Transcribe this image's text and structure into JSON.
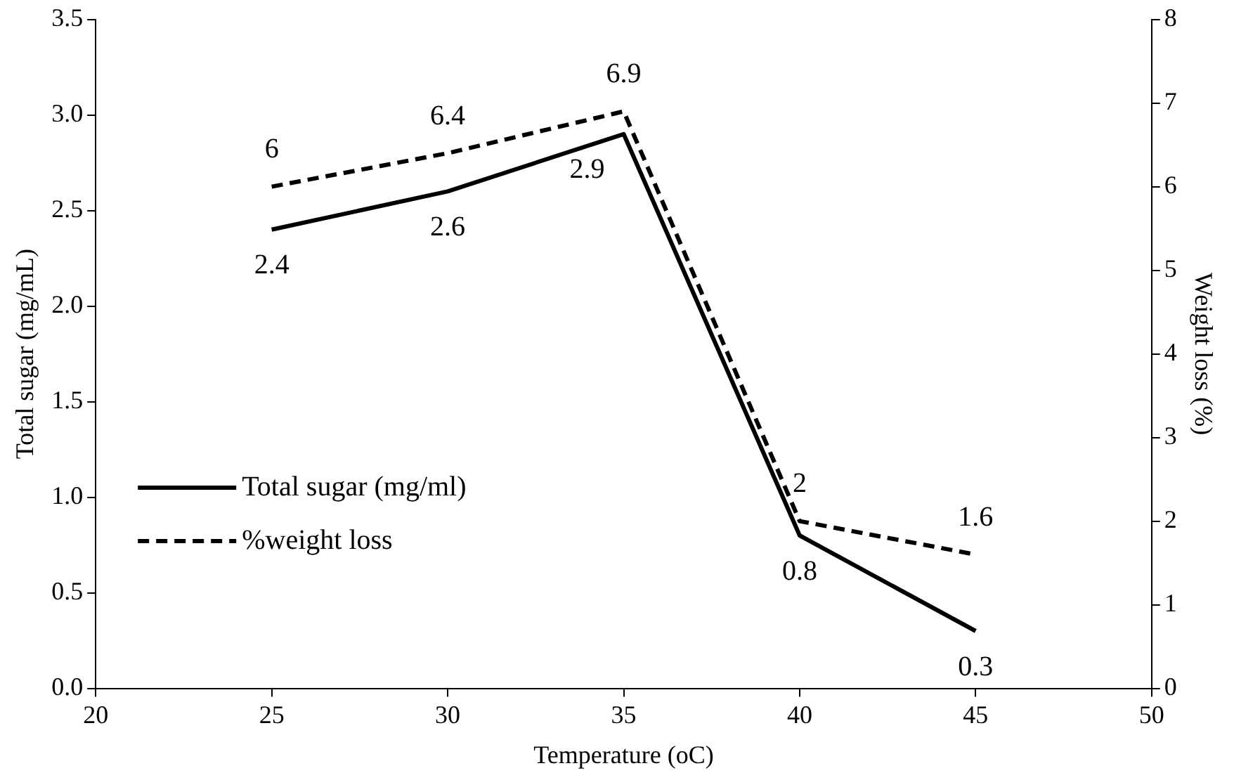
{
  "chart_data": {
    "type": "line",
    "xlabel": "Temperature (oC)",
    "ylabel": "Total sugar (mg/mL)",
    "y2label": "Weight loss (%)",
    "x": [
      25,
      30,
      35,
      40,
      45
    ],
    "series": [
      {
        "name": "Total sugar (mg/ml)",
        "color": "#000000",
        "values": [
          2.4,
          2.6,
          2.9,
          0.8,
          0.3
        ],
        "line_style": "solid"
      },
      {
        "name": "%weight loss",
        "color": "#000000",
        "values": [
          6,
          6.4,
          6.9,
          2,
          1.6
        ],
        "axis": "y2",
        "line_style": "dashed"
      }
    ],
    "xlim": [
      20,
      50
    ],
    "xticks": [
      20,
      25,
      30,
      35,
      40,
      45,
      50
    ],
    "ylim": [
      0,
      3.5
    ],
    "yticks": [
      {
        "value": 0,
        "label": "0.0"
      },
      {
        "value": 0.5,
        "label": "0.5"
      },
      {
        "value": 1,
        "label": "1.0"
      },
      {
        "value": 1.5,
        "label": "1.5"
      },
      {
        "value": 2,
        "label": "2.0"
      },
      {
        "value": 2.5,
        "label": "2.5"
      },
      {
        "value": 3,
        "label": "3.0"
      },
      {
        "value": 3.5,
        "label": "3.5"
      }
    ],
    "y2lim": [
      0,
      8
    ],
    "y2ticks": [
      0,
      1,
      2,
      3,
      4,
      5,
      6,
      7,
      8
    ],
    "grid": false,
    "legend": "left",
    "marker": "none",
    "data_labels": true
  }
}
